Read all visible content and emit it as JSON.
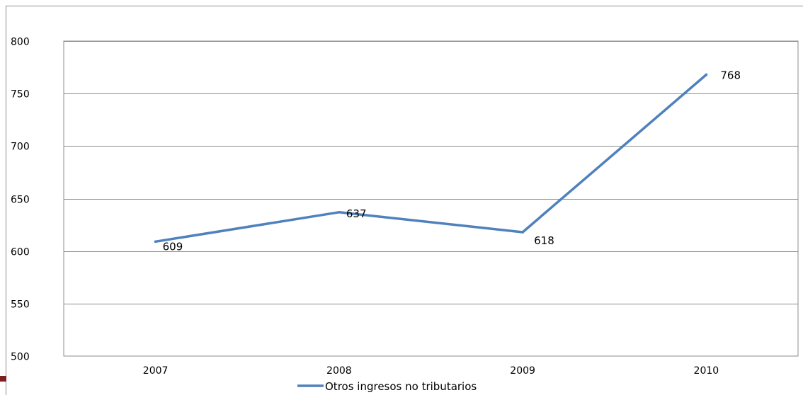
{
  "chart_data": {
    "type": "line",
    "title": "",
    "xlabel": "",
    "ylabel": "",
    "categories": [
      "2007",
      "2008",
      "2009",
      "2010"
    ],
    "series": [
      {
        "name": "Otros ingresos no tributarios",
        "values": [
          609,
          637,
          618,
          768
        ],
        "color": "#4f81bd"
      }
    ],
    "data_labels": [
      "609",
      "637",
      "618",
      "768"
    ],
    "ylim": [
      500,
      800
    ],
    "y_ticks": [
      "500",
      "550",
      "600",
      "650",
      "700",
      "750",
      "800"
    ],
    "grid": "horizontal",
    "legend_position": "bottom"
  }
}
